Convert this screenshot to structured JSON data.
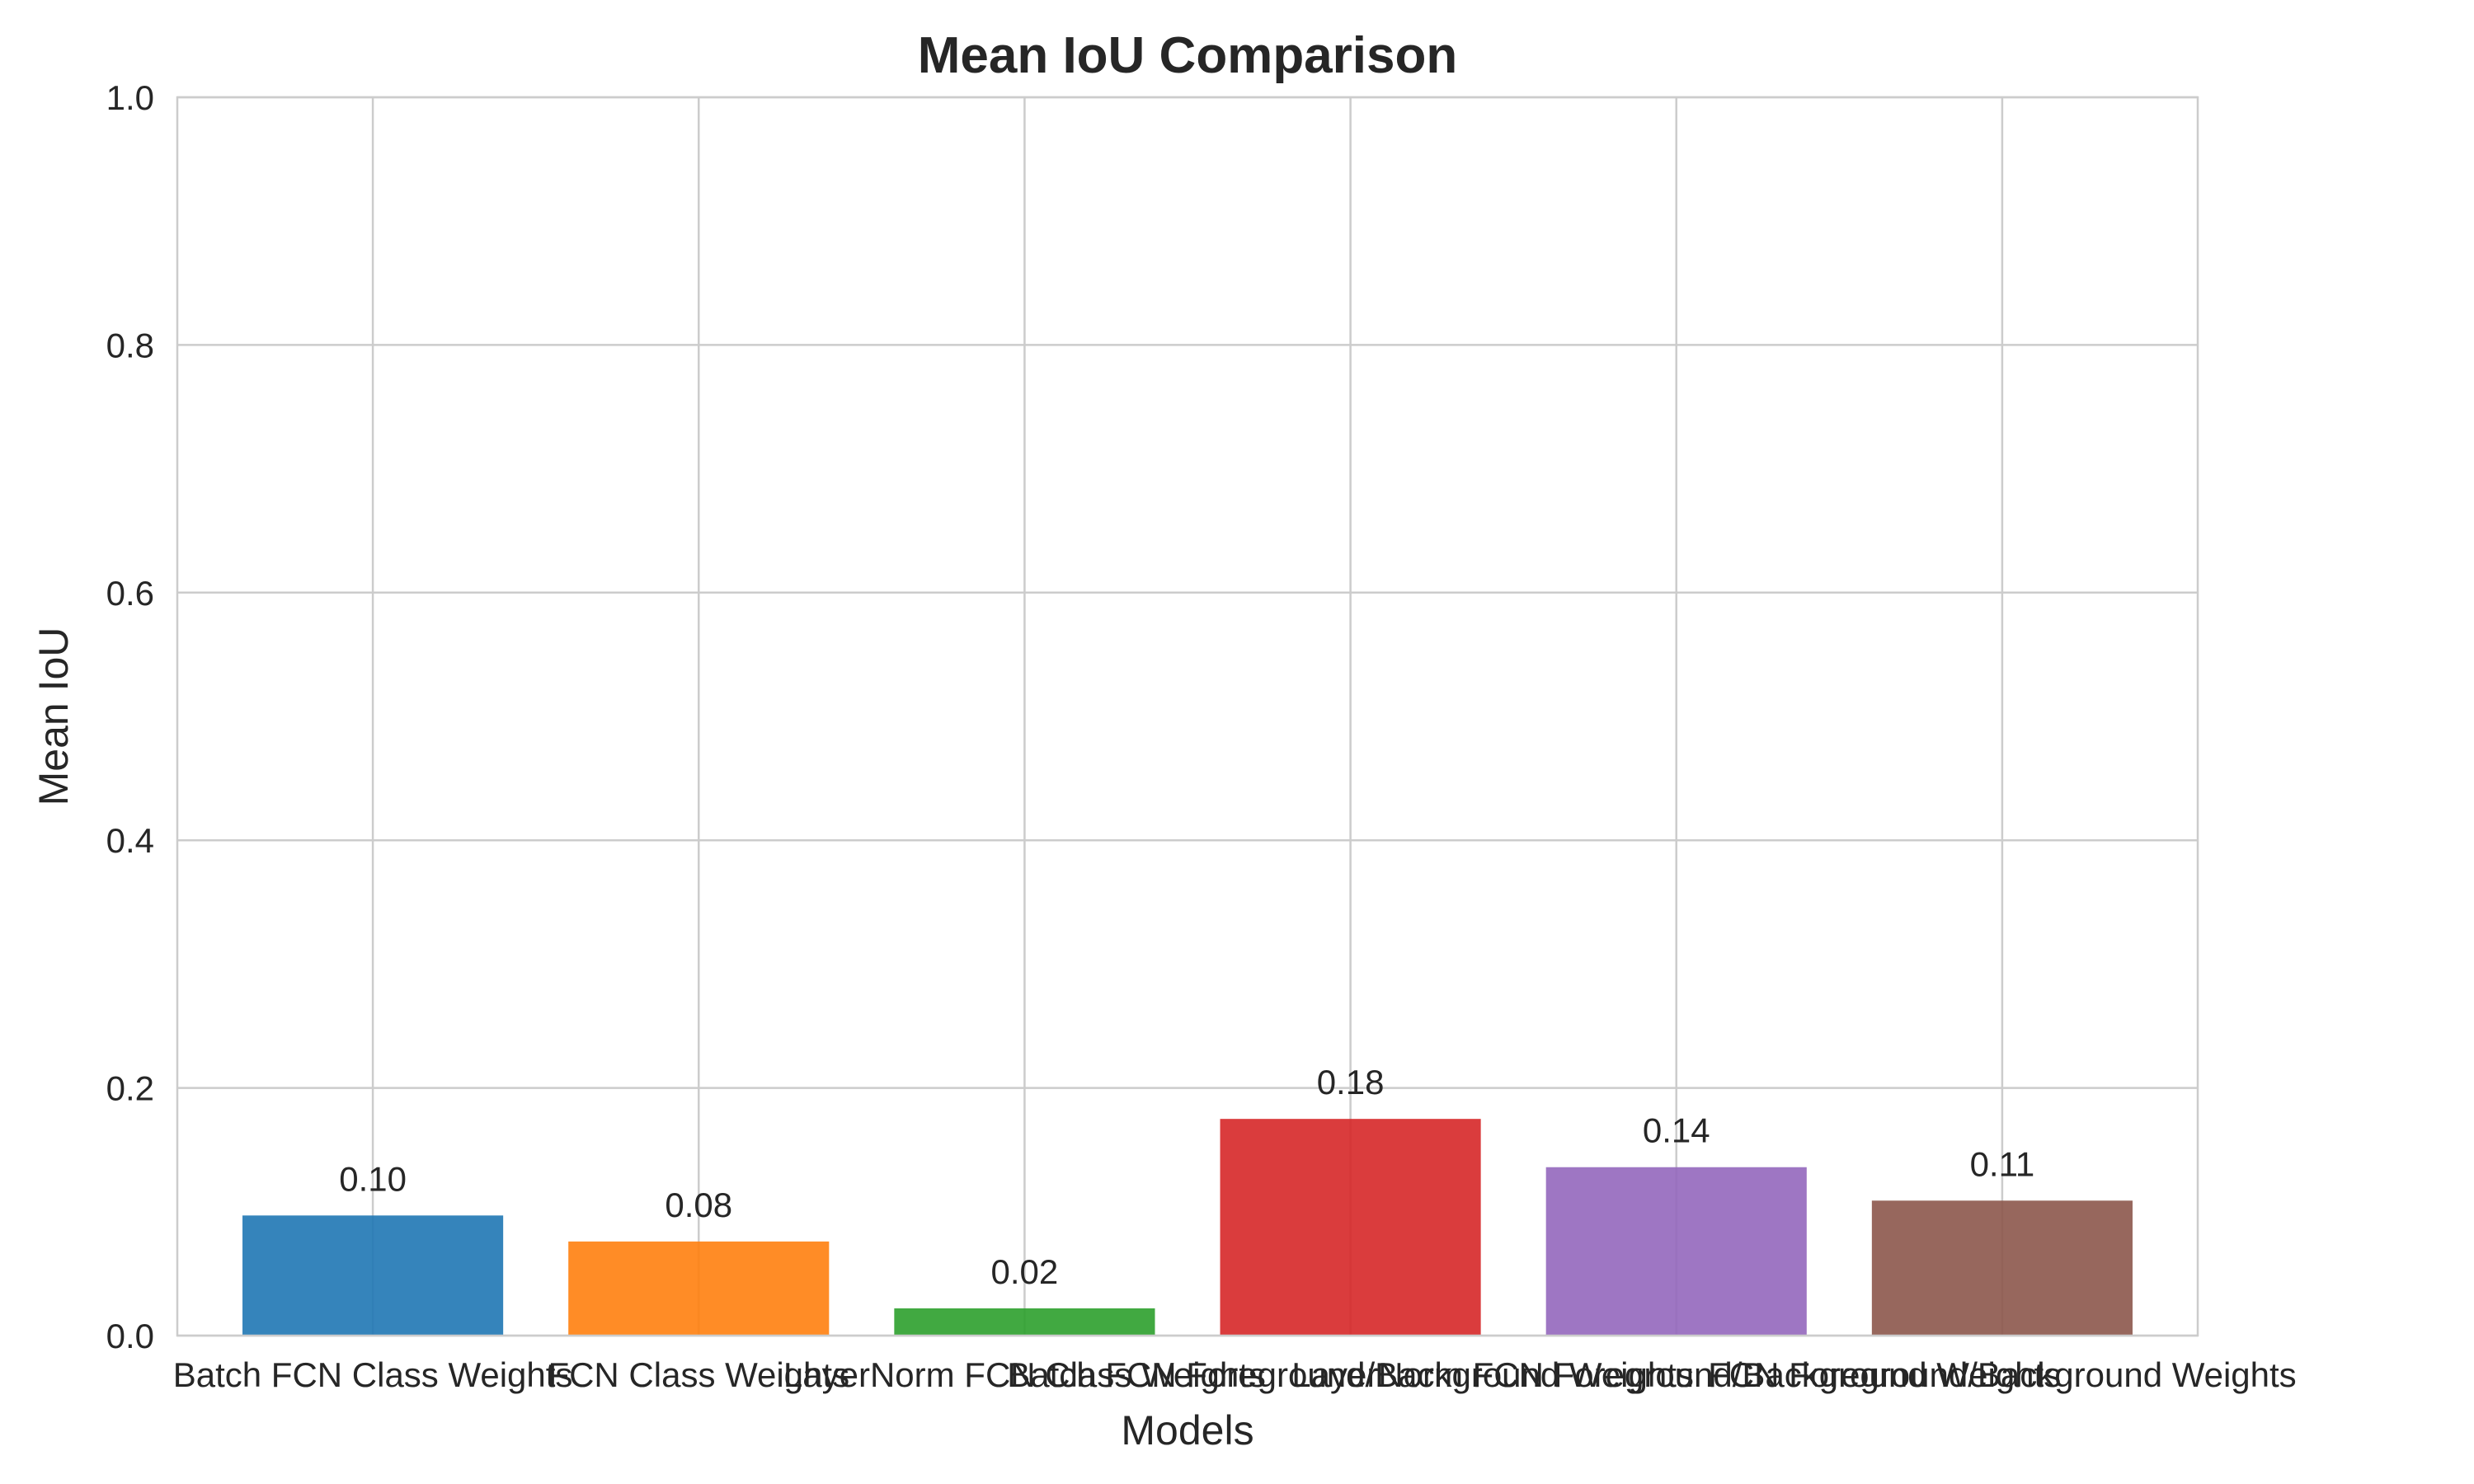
{
  "chart_data": {
    "type": "bar",
    "title": "Mean IoU Comparison",
    "xlabel": "Models",
    "ylabel": "Mean IoU",
    "ylim": [
      0,
      1.0
    ],
    "yticks": [
      "0.0",
      "0.2",
      "0.4",
      "0.6",
      "0.8",
      "1.0"
    ],
    "grid": true,
    "categories": [
      "Batch FCN Class Weights",
      "FCN Class Weights",
      "LayerNorm FCN Class Weights",
      "Batch FCN Foreground/Background Weights",
      "LayerNorm FCN Foreground/Background Weights",
      "FCN Foreground/Background Weights"
    ],
    "values": [
      0.097,
      0.076,
      0.022,
      0.175,
      0.136,
      0.109
    ],
    "data_labels": [
      "0.10",
      "0.08",
      "0.02",
      "0.18",
      "0.14",
      "0.11"
    ],
    "colors": [
      "#1f77b4",
      "#ff7f0e",
      "#2ca02c",
      "#d62728",
      "#9467bd",
      "#8c564b"
    ]
  }
}
